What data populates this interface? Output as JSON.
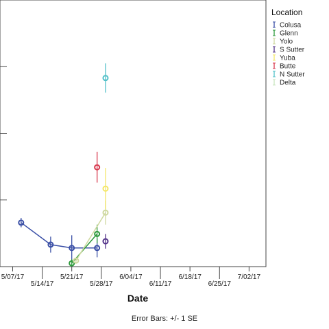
{
  "chart_data": {
    "type": "line",
    "title": "",
    "xlabel": "Date",
    "ylabel": "",
    "footnote": "Error Bars: +/- 1 SE",
    "x_tick_labels": [
      "5/07/17",
      "5/14/17",
      "5/21/17",
      "5/28/17",
      "6/04/17",
      "6/11/17",
      "6/18/17",
      "6/25/17",
      "7/02/17"
    ],
    "x_tick_days": [
      0,
      7,
      14,
      21,
      28,
      35,
      42,
      49,
      56
    ],
    "xlim": [
      -3,
      60
    ],
    "ylim": [
      0,
      40
    ],
    "y_ticks": [
      0,
      10,
      20,
      30,
      40
    ],
    "legend": {
      "title": "Location",
      "placement": "right"
    },
    "series": [
      {
        "name": "Colusa",
        "color": "#3a4fa6",
        "points": [
          {
            "x": 2,
            "y": 6.6,
            "se": 0.7
          },
          {
            "x": 9,
            "y": 3.3,
            "se": 1.2
          },
          {
            "x": 14,
            "y": 2.8,
            "se": 1.9
          },
          {
            "x": 20,
            "y": 2.8,
            "se": 1.4
          }
        ]
      },
      {
        "name": "Glenn",
        "color": "#2e9a3c",
        "points": [
          {
            "x": 14,
            "y": 0.5,
            "se": 0.6
          },
          {
            "x": 20,
            "y": 4.9,
            "se": 1.4
          }
        ]
      },
      {
        "name": "Yolo",
        "color": "#cfd9a0",
        "points": [
          {
            "x": 15,
            "y": 0.9,
            "se": 0.4
          },
          {
            "x": 22,
            "y": 8.1,
            "se": 1.8
          }
        ]
      },
      {
        "name": "S Sutter",
        "color": "#54348a",
        "points": [
          {
            "x": 22,
            "y": 3.8,
            "se": 1.1
          }
        ]
      },
      {
        "name": "Yuba",
        "color": "#f4e76a",
        "points": [
          {
            "x": 22,
            "y": 11.7,
            "se": 3.1
          }
        ]
      },
      {
        "name": "Butte",
        "color": "#d8394f",
        "points": [
          {
            "x": 20,
            "y": 14.9,
            "se": 2.3
          }
        ]
      },
      {
        "name": "N Sutter",
        "color": "#54c1c9",
        "points": [
          {
            "x": 22,
            "y": 28.3,
            "se": 2.2
          }
        ]
      },
      {
        "name": "Delta",
        "color": "#c8e6c0",
        "points": []
      }
    ]
  }
}
